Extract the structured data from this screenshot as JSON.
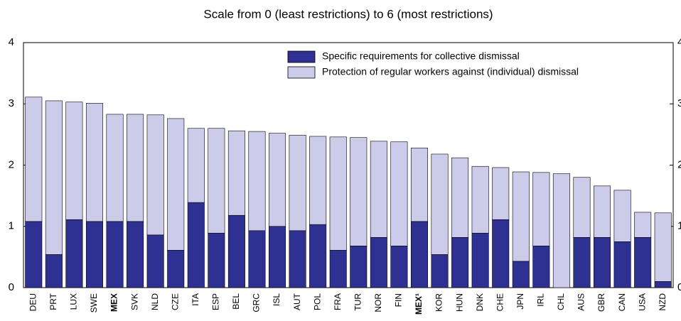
{
  "chart_data": {
    "type": "stacked-bar",
    "title": "Scale from 0 (least restrictions) to 6 (most restrictions)",
    "categories": [
      "DEU",
      "PRT",
      "LUX",
      "SWE",
      "MEX",
      "SVK",
      "NLD",
      "CZE",
      "ITA",
      "ESP",
      "BEL",
      "GRC",
      "ISL",
      "AUT",
      "POL",
      "FRA",
      "TUR",
      "NOR",
      "FIN",
      "MEX¹",
      "KOR",
      "HUN",
      "DNK",
      "CHE",
      "JPN",
      "IRL",
      "CHL",
      "AUS",
      "GBR",
      "CAN",
      "USA",
      "NZD"
    ],
    "bold_categories": [
      4,
      19
    ],
    "series": [
      {
        "name": "Specific requirements for collective dismissal",
        "color": "#2e3192",
        "values": [
          1.08,
          0.54,
          1.11,
          1.08,
          1.08,
          1.08,
          0.86,
          0.61,
          1.39,
          0.89,
          1.18,
          0.93,
          1.0,
          0.93,
          1.03,
          0.61,
          0.68,
          0.82,
          0.68,
          1.08,
          0.54,
          0.82,
          0.89,
          1.11,
          0.43,
          0.68,
          0,
          0.82,
          0.82,
          0.75,
          0.82,
          0.1
        ]
      },
      {
        "name": "Protection of regular workers against (individual) dismissal",
        "color": "#ccccea",
        "values": [
          2.03,
          2.51,
          1.92,
          1.93,
          1.75,
          1.75,
          1.96,
          2.15,
          1.21,
          1.71,
          1.38,
          1.62,
          1.52,
          1.56,
          1.44,
          1.85,
          1.77,
          1.57,
          1.7,
          1.2,
          1.64,
          1.3,
          1.09,
          0.85,
          1.46,
          1.2,
          1.86,
          0.98,
          0.84,
          0.84,
          0.41,
          1.12
        ]
      }
    ],
    "ylim": [
      0,
      4
    ],
    "yticks": [
      0,
      1,
      2,
      3,
      4
    ]
  }
}
